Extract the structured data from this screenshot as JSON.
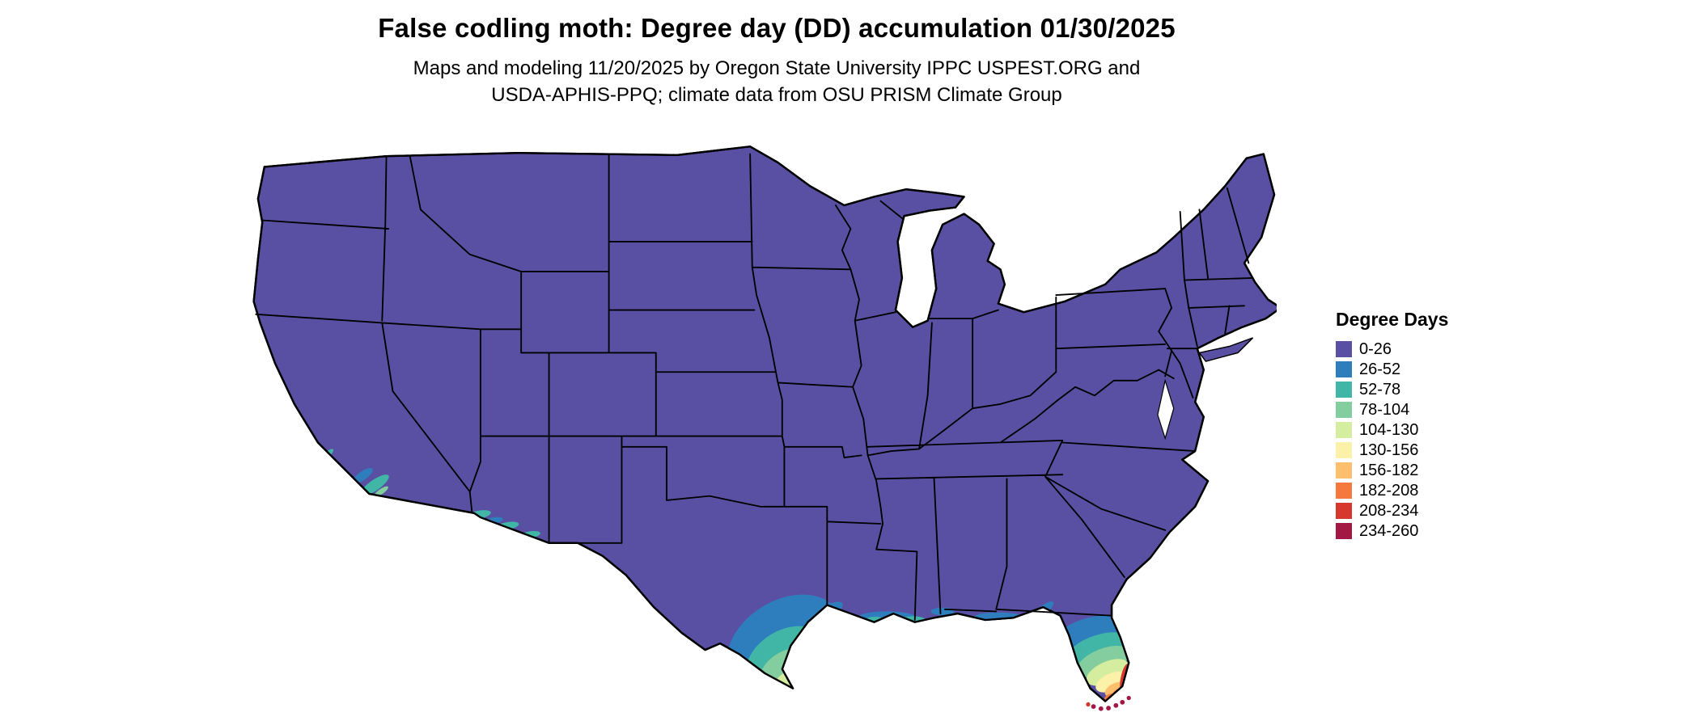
{
  "header": {
    "title": "False codling moth: Degree day (DD) accumulation 01/30/2025",
    "subtitle_line1": "Maps and modeling 11/20/2025 by Oregon State University IPPC USPEST.ORG and",
    "subtitle_line2": "USDA-APHIS-PPQ; climate data from OSU PRISM Climate Group"
  },
  "legend": {
    "title": "Degree Days",
    "items": [
      {
        "label": "0-26",
        "color": "#5A50A3"
      },
      {
        "label": "26-52",
        "color": "#2E7EBE"
      },
      {
        "label": "52-78",
        "color": "#41B6A6"
      },
      {
        "label": "78-104",
        "color": "#83CD9E"
      },
      {
        "label": "104-130",
        "color": "#D4ED9F"
      },
      {
        "label": "130-156",
        "color": "#FBF1A9"
      },
      {
        "label": "156-182",
        "color": "#FDBE6E"
      },
      {
        "label": "182-208",
        "color": "#F5793F"
      },
      {
        "label": "208-234",
        "color": "#D7382D"
      },
      {
        "label": "234-260",
        "color": "#A21743"
      }
    ]
  },
  "map": {
    "region": "Contiguous United States",
    "border_color": "#000000",
    "background": "#ffffff",
    "warm_areas": "southern Texas, Florida peninsula, Florida Keys, southern California coast, southern Arizona, Gulf Coast fringe"
  }
}
